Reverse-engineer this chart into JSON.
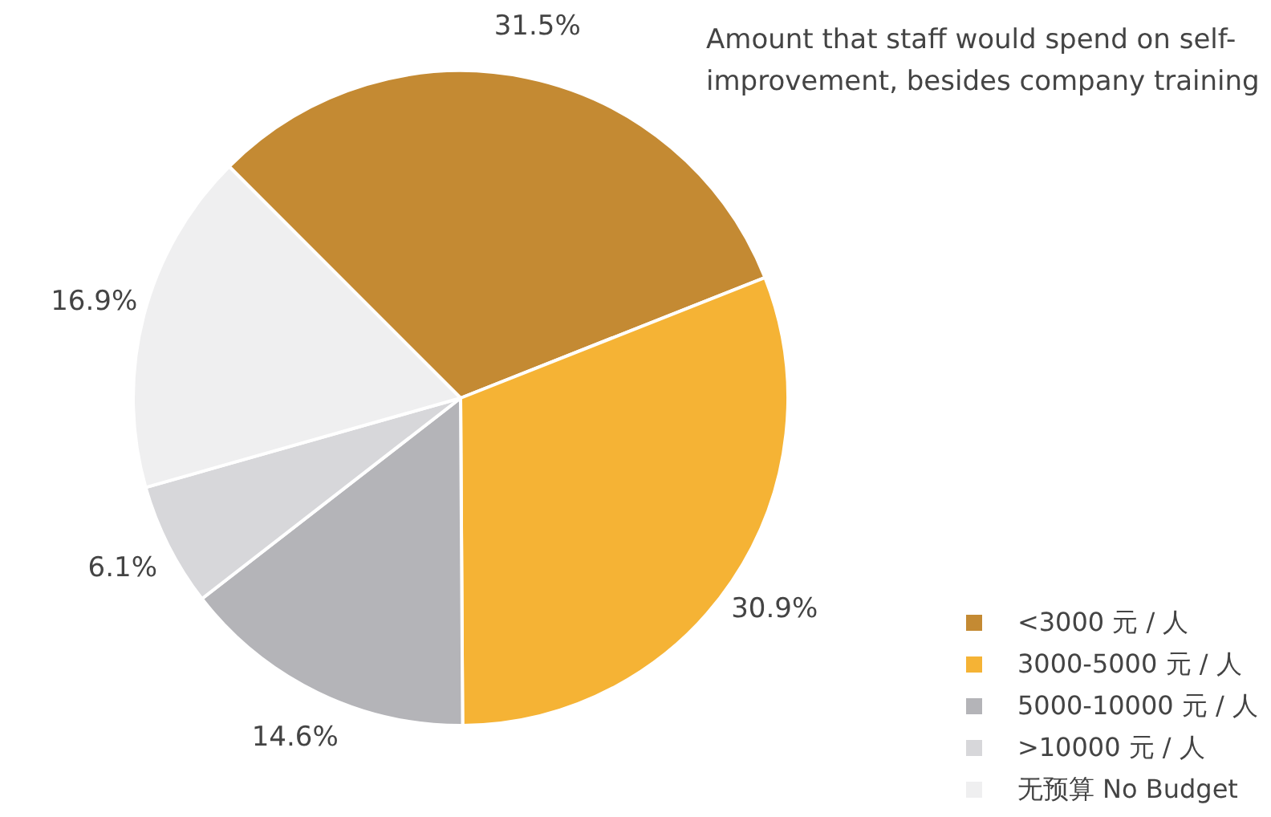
{
  "chart_data": {
    "type": "pie",
    "title": "Amount that staff would spend on self-improvement, besides company training",
    "categories": [
      "<3000 元 / 人",
      "3000-5000 元 / 人",
      "5000-10000 元 / 人",
      ">10000 元 / 人",
      "无预算 No Budget"
    ],
    "values": [
      31.5,
      30.9,
      14.6,
      6.1,
      16.9
    ],
    "colors": [
      "#c48a33",
      "#f5b335",
      "#b4b4b8",
      "#d7d7da",
      "#efeff0"
    ],
    "value_labels": [
      "31.5%",
      "30.9%",
      "14.6%",
      "6.1%",
      "16.9%"
    ],
    "legend": "bottom right"
  }
}
